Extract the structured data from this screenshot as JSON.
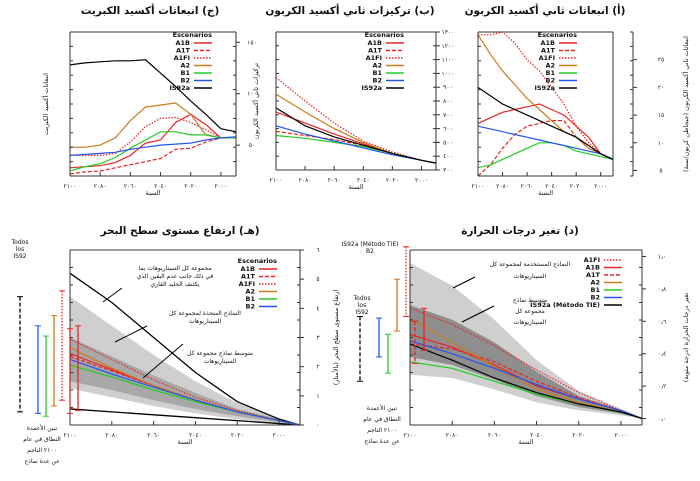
{
  "chart_data": [
    {
      "id": "sulfur",
      "type": "line",
      "title": "(ج) انبعاثات أكسيد الكبريت",
      "xlabel": "السنة",
      "ylabel": "انبعاثات أكسيد الكبريت",
      "x_ticks": [
        "٢١٠٠",
        "٢٠٨٠",
        "٢٠٦٠",
        "٢٠٤٠",
        "٢٠٢٠",
        "٢٠٠٠"
      ],
      "xlim": [
        2100,
        1990
      ],
      "y_ticks": [
        {
          "v": 50,
          "t": "٥٠"
        },
        {
          "v": 100,
          "t": "١٠٠"
        },
        {
          "v": 150,
          "t": "١٥٠"
        }
      ],
      "ylim": [
        20,
        160
      ],
      "legend_title": "Escenarios",
      "x": [
        2100,
        2090,
        2080,
        2070,
        2060,
        2050,
        2040,
        2030,
        2020,
        2010,
        2000,
        1990
      ],
      "series": [
        {
          "name": "A1B",
          "color": "#ee2222",
          "dash": "solid",
          "values": [
            28,
            29,
            30,
            33,
            40,
            52,
            55,
            72,
            80,
            70,
            57,
            57
          ]
        },
        {
          "name": "A1T",
          "color": "#ee2222",
          "dash": "dash",
          "values": [
            22,
            24,
            25,
            28,
            31,
            34,
            37,
            46,
            47,
            53,
            57,
            57
          ]
        },
        {
          "name": "A1FI",
          "color": "#ee2222",
          "dash": "dot",
          "values": [
            40,
            40,
            40,
            42,
            53,
            68,
            76,
            77,
            72,
            65,
            57,
            57
          ]
        },
        {
          "name": "A2",
          "color": "#cc7a1a",
          "dash": "solid",
          "values": [
            48,
            48,
            50,
            57,
            74,
            87,
            89,
            91,
            80,
            60,
            57,
            57
          ]
        },
        {
          "name": "B1",
          "color": "#22cc22",
          "dash": "solid",
          "values": [
            25,
            29,
            32,
            38,
            47,
            55,
            63,
            63,
            60,
            60,
            57,
            57
          ]
        },
        {
          "name": "B2",
          "color": "#2255ee",
          "dash": "solid",
          "values": [
            40,
            41,
            42,
            43,
            46,
            48,
            50,
            51,
            52,
            55,
            57,
            58
          ]
        },
        {
          "name": "IS92a",
          "color": "#000000",
          "dash": "solid",
          "values": [
            128,
            130,
            131,
            132,
            132,
            133,
            120,
            107,
            93,
            80,
            66,
            63
          ]
        }
      ]
    },
    {
      "id": "co2conc",
      "type": "line",
      "title": "(ب) تركيزات ثاني أكسيد الكربون",
      "xlabel": "السنة",
      "ylabel": "تركيزات ثاني أكسيد الكربون",
      "x_ticks": [
        "٢١٠٠",
        "٢٠٨٠",
        "٢٠٦٠",
        "٢٠٤٠",
        "٢٠٢٠",
        "٢٠٠٠"
      ],
      "xlim": [
        2100,
        1990
      ],
      "y_ticks": [
        {
          "v": 300,
          "t": "٣٠٠"
        },
        {
          "v": 400,
          "t": "٤٠٠"
        },
        {
          "v": 500,
          "t": "٥٠٠"
        },
        {
          "v": 600,
          "t": "٦٠٠"
        },
        {
          "v": 700,
          "t": "٧٠٠"
        },
        {
          "v": 800,
          "t": "٨٠٠"
        },
        {
          "v": 900,
          "t": "٩٠٠"
        },
        {
          "v": 1000,
          "t": "١٠٠٠"
        },
        {
          "v": 1100,
          "t": "١١٠٠"
        },
        {
          "v": 1200,
          "t": "١٢٠٠"
        },
        {
          "v": 1300,
          "t": "١٣٠٠"
        }
      ],
      "ylim": [
        300,
        1300
      ],
      "legend_title": "Escenarios",
      "x": [
        2100,
        2080,
        2060,
        2040,
        2020,
        2000,
        1990
      ],
      "series": [
        {
          "name": "A1B",
          "color": "#ee2222",
          "dash": "solid",
          "values": [
            720,
            640,
            560,
            490,
            420,
            370,
            350
          ]
        },
        {
          "name": "A1T",
          "color": "#ee2222",
          "dash": "dash",
          "values": [
            580,
            550,
            520,
            480,
            420,
            370,
            350
          ]
        },
        {
          "name": "A1FI",
          "color": "#ee2222",
          "dash": "dot",
          "values": [
            970,
            800,
            640,
            510,
            430,
            370,
            350
          ]
        },
        {
          "name": "A2",
          "color": "#cc7a1a",
          "dash": "solid",
          "values": [
            850,
            720,
            600,
            500,
            420,
            370,
            350
          ]
        },
        {
          "name": "B1",
          "color": "#22cc22",
          "dash": "solid",
          "values": [
            550,
            530,
            500,
            470,
            420,
            370,
            350
          ]
        },
        {
          "name": "B2",
          "color": "#2255ee",
          "dash": "solid",
          "values": [
            620,
            560,
            510,
            460,
            410,
            370,
            350
          ]
        },
        {
          "name": "IS92a",
          "color": "#000000",
          "dash": "solid",
          "values": [
            750,
            620,
            540,
            480,
            420,
            370,
            350
          ]
        }
      ]
    },
    {
      "id": "co2emis",
      "type": "line",
      "title": "(أ) انبعاثات ثاني أكسيد الكربون",
      "xlabel": "السنة",
      "ylabel": "انبعاثات ثاني أكسيد الكربون (جيجاطن كربون/سنة)",
      "x_ticks": [
        "٢١٠٠",
        "٢٠٨٠",
        "٢٠٦٠",
        "٢٠٤٠",
        "٢٠٢٠",
        "٢٠٠٠"
      ],
      "xlim": [
        2100,
        1990
      ],
      "y_ticks": [
        {
          "v": 5,
          "t": "٥"
        },
        {
          "v": 10,
          "t": "١٠"
        },
        {
          "v": 15,
          "t": "١٥"
        },
        {
          "v": 20,
          "t": "٢٠"
        },
        {
          "v": 25,
          "t": "٢٥"
        }
      ],
      "ylim": [
        4,
        30
      ],
      "legend_title": "Escenarios",
      "x": [
        2100,
        2090,
        2080,
        2070,
        2060,
        2050,
        2040,
        2030,
        2020,
        2010,
        2000,
        1990
      ],
      "series": [
        {
          "name": "A1B",
          "color": "#ee2222",
          "dash": "solid",
          "values": [
            13.5,
            14.5,
            15.5,
            16,
            16.5,
            17,
            16,
            15,
            13,
            11,
            8,
            7
          ]
        },
        {
          "name": "A1T",
          "color": "#ee2222",
          "dash": "dash",
          "values": [
            4,
            6,
            9,
            11.5,
            13,
            13.5,
            14,
            14,
            11,
            9,
            8,
            7
          ]
        },
        {
          "name": "A1FI",
          "color": "#ee2222",
          "dash": "dot",
          "values": [
            29.5,
            29.5,
            30,
            28,
            25,
            23,
            20,
            17,
            13,
            10,
            8,
            7
          ]
        },
        {
          "name": "A2",
          "color": "#cc7a1a",
          "dash": "solid",
          "values": [
            29.5,
            26,
            23,
            20.5,
            18,
            16,
            14,
            12,
            11,
            9,
            8,
            7
          ]
        },
        {
          "name": "B1",
          "color": "#22cc22",
          "dash": "solid",
          "values": [
            5.5,
            6,
            7,
            8,
            9,
            10,
            10,
            9.5,
            8.5,
            8,
            7.5,
            7
          ]
        },
        {
          "name": "B2",
          "color": "#2255ee",
          "dash": "solid",
          "values": [
            13,
            12.5,
            12,
            11.5,
            11,
            10.5,
            10,
            9.5,
            9,
            8.5,
            8,
            7
          ]
        },
        {
          "name": "IS92a",
          "color": "#000000",
          "dash": "solid",
          "values": [
            20,
            18.5,
            17,
            16,
            15,
            14,
            13,
            12,
            11,
            9.5,
            8,
            7
          ]
        }
      ]
    },
    {
      "id": "sealevel",
      "type": "line",
      "title": "(هـ) ارتفاع مستوى سطح البحر",
      "xlabel": "السنة",
      "ylabel": "ارتفاع مستوى سطح البحر (بالأمتار)",
      "x_ticks": [
        "٢١٠٠",
        "٢٠٨٠",
        "٢٠٦٠",
        "٢٠٤٠",
        "٢٠٢٠",
        "٢٠٠٠"
      ],
      "xlim": [
        2100,
        1990
      ],
      "y_ticks": [
        {
          "v": 0,
          "t": "٠"
        },
        {
          "v": 0.2,
          "t": "١"
        },
        {
          "v": 0.4,
          "t": "٢"
        },
        {
          "v": 0.6,
          "t": "٣"
        },
        {
          "v": 0.8,
          "t": "٤"
        },
        {
          "v": 1.0,
          "t": "٥"
        },
        {
          "v": 1.2,
          "t": "٦"
        }
      ],
      "ylim": [
        0,
        1.2
      ],
      "legend_title": "Escenarios",
      "x": [
        2100,
        2080,
        2060,
        2040,
        2020,
        2000,
        1990
      ],
      "bands": [
        {
          "name": "outer",
          "color": "#cfcfcf",
          "upper": [
            0.88,
            0.68,
            0.48,
            0.3,
            0.15,
            0.05,
            0
          ],
          "lower": [
            0.25,
            0.19,
            0.13,
            0.08,
            0.04,
            0.01,
            0
          ]
        },
        {
          "name": "inner",
          "color": "#a8a8a8",
          "upper": [
            0.6,
            0.47,
            0.34,
            0.22,
            0.11,
            0.04,
            0
          ],
          "lower": [
            0.3,
            0.24,
            0.17,
            0.11,
            0.06,
            0.02,
            0
          ]
        }
      ],
      "envelope": {
        "upper": [
          1.04,
          0.84,
          0.6,
          0.36,
          0.16,
          0.04,
          0
        ],
        "lower": [
          0.11,
          0.09,
          0.07,
          0.05,
          0.03,
          0.01,
          0
        ]
      },
      "series": [
        {
          "name": "A1B",
          "color": "#ee2222",
          "dash": "solid",
          "values": [
            0.49,
            0.38,
            0.27,
            0.17,
            0.09,
            0.03,
            0
          ]
        },
        {
          "name": "A1T",
          "color": "#ee2222",
          "dash": "dash",
          "values": [
            0.47,
            0.37,
            0.27,
            0.17,
            0.09,
            0.03,
            0
          ]
        },
        {
          "name": "A1FI",
          "color": "#ee2222",
          "dash": "dot",
          "values": [
            0.59,
            0.45,
            0.31,
            0.19,
            0.1,
            0.03,
            0
          ]
        },
        {
          "name": "A2",
          "color": "#cc7a1a",
          "dash": "solid",
          "values": [
            0.53,
            0.39,
            0.27,
            0.17,
            0.09,
            0.03,
            0
          ]
        },
        {
          "name": "B1",
          "color": "#22cc22",
          "dash": "solid",
          "values": [
            0.41,
            0.33,
            0.24,
            0.16,
            0.09,
            0.03,
            0
          ]
        },
        {
          "name": "B2",
          "color": "#2255ee",
          "dash": "solid",
          "values": [
            0.45,
            0.35,
            0.26,
            0.17,
            0.09,
            0.03,
            0
          ]
        }
      ],
      "range_bars": [
        {
          "name": "Todos los IS92",
          "color": "#000000",
          "dash": "dash",
          "lo": 0.09,
          "hi": 0.88
        },
        {
          "name": "B2",
          "color": "#2255ee",
          "dash": "solid",
          "lo": 0.08,
          "hi": 0.68
        },
        {
          "name": "B1",
          "color": "#22cc22",
          "dash": "solid",
          "lo": 0.06,
          "hi": 0.61
        },
        {
          "name": "A2",
          "color": "#cc7a1a",
          "dash": "solid",
          "lo": 0.13,
          "hi": 0.75
        },
        {
          "name": "A1FI",
          "color": "#ee2222",
          "dash": "dot",
          "lo": 0.17,
          "hi": 0.92
        },
        {
          "name": "A1T",
          "color": "#ee2222",
          "dash": "dash",
          "lo": 0.08,
          "hi": 0.66
        },
        {
          "name": "A1B",
          "color": "#ee2222",
          "dash": "solid",
          "lo": 0.1,
          "hi": 0.68
        }
      ],
      "annotations": [
        "مجموعة كل السيناريوهات بما في ذلك جانب عدم اليقين الذي يكتنف الجليد القاري",
        "النماذج المتخذة لمجموعة كل السيناريوهات",
        "متوسط نماذج مجموعة كل السيناريوهات"
      ],
      "bars_caption": "تبين الأعمدة النطاق في عام ٢١٠٠ الناجم عن عدة نماذج",
      "bars_header": "Todos los IS92"
    },
    {
      "id": "temperature",
      "type": "line",
      "title": "(د) تغير درجات الحرارة",
      "xlabel": "السنة",
      "ylabel": "تغير درجات الحرارة (درجة مئوية)",
      "x_ticks": [
        "٢١٠٠",
        "٢٠٨٠",
        "٢٠٦٠",
        "٢٠٤٠",
        "٢٠٢٠",
        "٢٠٠٠"
      ],
      "xlim": [
        2100,
        1990
      ],
      "y_ticks": [
        {
          "v": 0,
          "t": "٠٫٠"
        },
        {
          "v": 2,
          "t": "٠٫٢"
        },
        {
          "v": 4,
          "t": "٠٫٤"
        },
        {
          "v": 6,
          "t": "٠٫٦"
        },
        {
          "v": 8,
          "t": "٠٫٨"
        },
        {
          "v": 10,
          "t": "١٫٠"
        }
      ],
      "ylim": [
        -0.4,
        10.4
      ],
      "legend_title": "",
      "x": [
        2100,
        2080,
        2060,
        2040,
        2020,
        2000,
        1990
      ],
      "bands": [
        {
          "name": "outer",
          "color": "#cfcfcf",
          "upper": [
            9.6,
            8.2,
            6.1,
            3.6,
            1.7,
            0.6,
            0
          ],
          "lower": [
            2.7,
            2.5,
            1.8,
            1.0,
            0.5,
            0.2,
            0
          ]
        },
        {
          "name": "inner",
          "color": "#8e8e8e",
          "upper": [
            7.0,
            6.1,
            4.7,
            2.9,
            1.4,
            0.5,
            0
          ],
          "lower": [
            3.8,
            3.3,
            2.4,
            1.4,
            0.7,
            0.3,
            0
          ]
        }
      ],
      "series": [
        {
          "name": "A1FI",
          "color": "#ee2222",
          "dash": "dot",
          "values": [
            6.8,
            5.8,
            4.5,
            3.0,
            1.6,
            0.5,
            0
          ]
        },
        {
          "name": "A1B",
          "color": "#ee2222",
          "dash": "solid",
          "values": [
            5.2,
            4.4,
            3.3,
            2.0,
            1.2,
            0.5,
            0
          ]
        },
        {
          "name": "A1T",
          "color": "#ee2222",
          "dash": "dash",
          "values": [
            4.6,
            4.3,
            3.5,
            2.3,
            1.3,
            0.5,
            0
          ]
        },
        {
          "name": "A2",
          "color": "#cc7a1a",
          "dash": "solid",
          "values": [
            6.2,
            4.7,
            3.2,
            1.8,
            1.0,
            0.4,
            0
          ]
        },
        {
          "name": "B1",
          "color": "#22cc22",
          "dash": "solid",
          "values": [
            3.5,
            3.1,
            2.3,
            1.5,
            0.9,
            0.4,
            0
          ]
        },
        {
          "name": "B2",
          "color": "#2255ee",
          "dash": "solid",
          "values": [
            4.8,
            4.0,
            3.1,
            2.1,
            1.2,
            0.5,
            0
          ]
        },
        {
          "name": "IS92a (Método TIE)",
          "color": "#000000",
          "dash": "solid",
          "values": [
            4.6,
            3.6,
            2.5,
            1.6,
            0.9,
            0.4,
            0
          ]
        }
      ],
      "range_bars": [
        {
          "name": "Todos los IS92",
          "color": "#000000",
          "dash": "dash",
          "lo": 2.3,
          "hi": 6.3
        },
        {
          "name": "B2",
          "color": "#2255ee",
          "dash": "solid",
          "lo": 3.8,
          "hi": 6.2
        },
        {
          "name": "B1",
          "color": "#22cc22",
          "dash": "solid",
          "lo": 2.8,
          "hi": 5.2
        },
        {
          "name": "A2",
          "color": "#cc7a1a",
          "dash": "solid",
          "lo": 5.4,
          "hi": 8.6
        },
        {
          "name": "A1FI",
          "color": "#ee2222",
          "dash": "dot",
          "lo": 6.3,
          "hi": 10.6
        },
        {
          "name": "A1T",
          "color": "#ee2222",
          "dash": "dash",
          "lo": 3.4,
          "hi": 6.0
        },
        {
          "name": "A1B",
          "color": "#ee2222",
          "dash": "solid",
          "lo": 4.2,
          "hi": 6.8
        }
      ],
      "annotations": [
        "النماذج المستخدمة لمجموعة كل السيناريوهات",
        "متوسط نماذج مجموعة كل السيناريوهات"
      ],
      "bars_caption": "تبين الأعمدة النطاق في عام ٢١٠٠ الناجم عن عدة نماذج",
      "bars_header": "Todos los IS92",
      "bars_header_top": "IS92a (Método TIE) B2"
    }
  ]
}
